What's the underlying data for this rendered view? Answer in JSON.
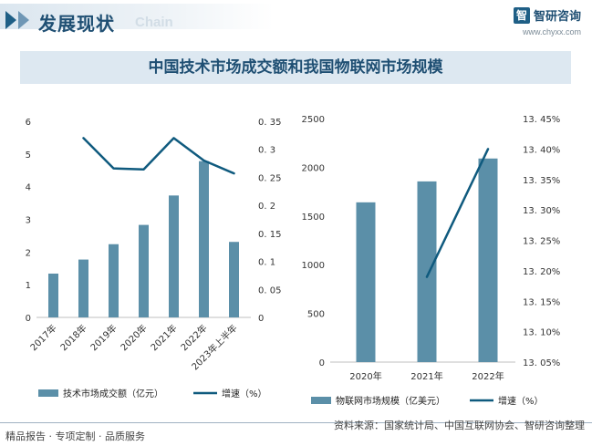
{
  "header": {
    "title": "发展现状",
    "subtitle": "Chain",
    "brand_name": "智研咨询",
    "brand_url": "www.chyxx.com"
  },
  "main_title": "中国技术市场成交额和我国物联网市场规模",
  "footer": {
    "left": "精品报告 · 专项定制 · 品质服务",
    "right": "资料来源：国家统计局、中国互联网协会、智研咨询整理"
  },
  "colors": {
    "bar": "#5b8fa8",
    "line": "#0f5a7e",
    "title_bg": "#dde8f1",
    "title_text": "#1f4f73"
  },
  "chart_data": [
    {
      "type": "bar",
      "categories": [
        "2017年",
        "2018年",
        "2019年",
        "2020年",
        "2021年",
        "2022年",
        "2023年上半年"
      ],
      "series": [
        {
          "name": "技术市场成交额（亿元）",
          "type": "bar",
          "axis": "left",
          "values": [
            1.34,
            1.77,
            2.24,
            2.83,
            3.73,
            4.78,
            2.31
          ]
        },
        {
          "name": "增速（%）",
          "type": "line",
          "axis": "right",
          "values": [
            null,
            0.32,
            0.266,
            0.264,
            0.32,
            0.28,
            0.257
          ]
        }
      ],
      "y_left": {
        "min": 0,
        "max": 6,
        "ticks": [
          "0",
          "1",
          "2",
          "3",
          "4",
          "5",
          "6"
        ]
      },
      "y_right": {
        "min": 0,
        "max": 0.35,
        "ticks": [
          "0",
          "0. 05",
          "0. 1",
          "0. 15",
          "0. 2",
          "0. 25",
          "0. 3",
          "0. 35"
        ]
      },
      "legend": "bottom"
    },
    {
      "type": "bar",
      "categories": [
        "2020年",
        "2021年",
        "2022年"
      ],
      "series": [
        {
          "name": "物联网市场规模（亿美元）",
          "type": "bar",
          "axis": "left",
          "values": [
            1640,
            1855,
            2090
          ]
        },
        {
          "name": "增速（%）",
          "type": "line",
          "axis": "right",
          "values": [
            null,
            13.19,
            13.4
          ]
        }
      ],
      "y_left": {
        "min": 0,
        "max": 2500,
        "ticks": [
          "0",
          "500",
          "1000",
          "1500",
          "2000",
          "2500"
        ]
      },
      "y_right": {
        "min": 13.05,
        "max": 13.45,
        "ticks": [
          "13. 05%",
          "13. 10%",
          "13. 15%",
          "13. 20%",
          "13. 25%",
          "13. 30%",
          "13. 35%",
          "13. 40%",
          "13. 45%"
        ]
      },
      "legend": "bottom"
    }
  ]
}
